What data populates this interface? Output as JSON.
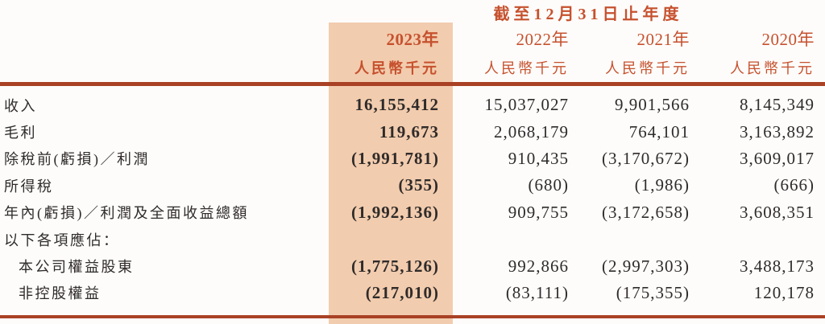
{
  "colors": {
    "accent": "#c6512e",
    "rule": "#a94125",
    "highlight": "#f2ccae",
    "ink": "#2f2b2a",
    "page-bg": "#fdfcfa"
  },
  "table": {
    "span_header": "截至12月31日止年度",
    "columns": [
      {
        "year": "2023年",
        "unit": "人民幣千元",
        "highlighted": true
      },
      {
        "year": "2022年",
        "unit": "人民幣千元",
        "highlighted": false
      },
      {
        "year": "2021年",
        "unit": "人民幣千元",
        "highlighted": false
      },
      {
        "year": "2020年",
        "unit": "人民幣千元",
        "highlighted": false
      }
    ],
    "rows": [
      {
        "label": "收入",
        "values": [
          "16,155,412",
          "15,037,027",
          "9,901,566",
          "8,145,349"
        ]
      },
      {
        "label": "毛利",
        "values": [
          "119,673",
          "2,068,179",
          "764,101",
          "3,163,892"
        ]
      },
      {
        "label": "除稅前(虧損)／利潤",
        "values": [
          "(1,991,781)",
          "910,435",
          "(3,170,672)",
          "3,609,017"
        ]
      },
      {
        "label": "所得稅",
        "values": [
          "(355)",
          "(680)",
          "(1,986)",
          "(666)"
        ]
      },
      {
        "label": "年內(虧損)／利潤及全面收益總額",
        "values": [
          "(1,992,136)",
          "909,755",
          "(3,172,658)",
          "3,608,351"
        ]
      },
      {
        "label": "以下各項應佔：",
        "values": [
          "",
          "",
          "",
          ""
        ]
      },
      {
        "label": "本公司權益股東",
        "indent": true,
        "values": [
          "(1,775,126)",
          "992,866",
          "(2,997,303)",
          "3,488,173"
        ]
      },
      {
        "label": "非控股權益",
        "indent": true,
        "values": [
          "(217,010)",
          "(83,111)",
          "(175,355)",
          "120,178"
        ]
      }
    ]
  }
}
